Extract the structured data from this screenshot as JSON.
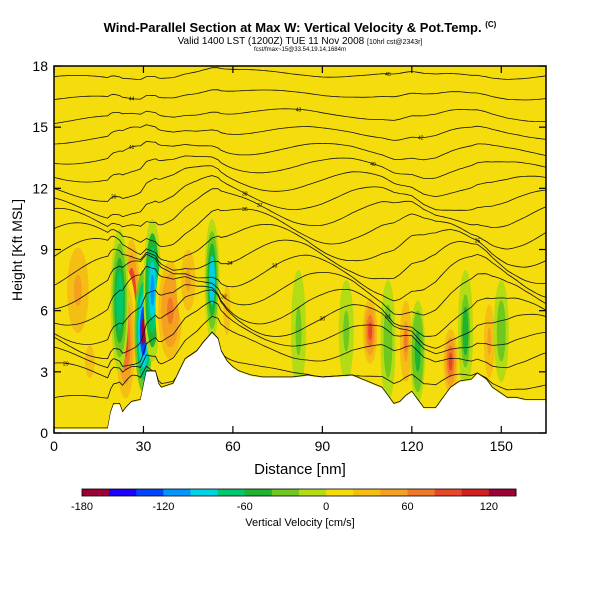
{
  "header": {
    "title": "Wind-Parallel Section at Max W: Vertical Velocity & Pot.Temp.",
    "title_mark": "(C)",
    "subtitle": "Valid 1400 LST (1200Z) TUE 11 Nov 2008",
    "subtitle_note": "[10hrl cst@2343r]",
    "tiny_note": "fcst/fmax~15@33.54,19.14,1684m"
  },
  "colors": {
    "plot_bg": "#f5dc0c",
    "terrain": "#ffffff",
    "contour": "#111111",
    "ramp": [
      "#9c0037",
      "#1a00ff",
      "#0046ff",
      "#0096ff",
      "#00d2e6",
      "#00c86e",
      "#1eb432",
      "#6ec81e",
      "#b4dc14",
      "#f5dc0c",
      "#f5be14",
      "#f5a01e",
      "#f07828",
      "#e84628",
      "#d21e1e",
      "#9c0037"
    ]
  },
  "chart_data": {
    "type": "contour",
    "xlabel": "Distance [nm]",
    "ylabel": "Height [Kft MSL]",
    "xlim": [
      0,
      165
    ],
    "ylim": [
      0,
      18
    ],
    "xticks": [
      0,
      30,
      60,
      90,
      120,
      150
    ],
    "yticks": [
      0,
      3,
      6,
      9,
      12,
      15,
      18
    ],
    "colorbar": {
      "label": "Vertical Velocity [cm/s]",
      "ticks": [
        -180,
        -120,
        -60,
        0,
        60,
        120
      ],
      "min": -180,
      "max": 140,
      "step": 20
    },
    "terrain_kft": [
      [
        0,
        0.2
      ],
      [
        18,
        0.2
      ],
      [
        19,
        1.0
      ],
      [
        20,
        1.4
      ],
      [
        22,
        1.4
      ],
      [
        23,
        1.0
      ],
      [
        24,
        1.2
      ],
      [
        26,
        1.5
      ],
      [
        29,
        1.6
      ],
      [
        31,
        3.0
      ],
      [
        34,
        3.0
      ],
      [
        35,
        2.4
      ],
      [
        36,
        2.2
      ],
      [
        40,
        2.4
      ],
      [
        42,
        3.0
      ],
      [
        44,
        3.6
      ],
      [
        46,
        3.8
      ],
      [
        48,
        4.0
      ],
      [
        50,
        4.4
      ],
      [
        53,
        4.9
      ],
      [
        55,
        4.6
      ],
      [
        56,
        4.0
      ],
      [
        58,
        3.5
      ],
      [
        60,
        3.2
      ],
      [
        62,
        3.0
      ],
      [
        66,
        2.8
      ],
      [
        70,
        2.7
      ],
      [
        80,
        2.7
      ],
      [
        85,
        2.8
      ],
      [
        90,
        2.7
      ],
      [
        100,
        2.8
      ],
      [
        105,
        2.5
      ],
      [
        110,
        2.2
      ],
      [
        112,
        1.8
      ],
      [
        114,
        1.4
      ],
      [
        116,
        1.5
      ],
      [
        118,
        1.8
      ],
      [
        120,
        2.0
      ],
      [
        122,
        1.6
      ],
      [
        124,
        1.2
      ],
      [
        128,
        1.2
      ],
      [
        130,
        1.6
      ],
      [
        133,
        2.2
      ],
      [
        136,
        2.5
      ],
      [
        140,
        2.6
      ],
      [
        142,
        2.9
      ],
      [
        145,
        2.6
      ],
      [
        147,
        2.2
      ],
      [
        149,
        2.0
      ],
      [
        152,
        1.7
      ],
      [
        155,
        1.7
      ],
      [
        158,
        1.6
      ],
      [
        165,
        1.6
      ]
    ],
    "w_cells": [
      {
        "x": 26,
        "z": 6.0,
        "rx": 3,
        "rz": 3.5,
        "w": 140
      },
      {
        "x": 24,
        "z": 4.5,
        "rx": 4,
        "rz": 3.5,
        "w": 80
      },
      {
        "x": 30,
        "z": 5.0,
        "rx": 3,
        "rz": 3.0,
        "w": -170
      },
      {
        "x": 33,
        "z": 7.0,
        "rx": 3,
        "rz": 3.5,
        "w": -110
      },
      {
        "x": 22,
        "z": 6.5,
        "rx": 3,
        "rz": 3.5,
        "w": -80
      },
      {
        "x": 8,
        "z": 7.0,
        "rx": 6,
        "rz": 3.5,
        "w": 40
      },
      {
        "x": 39,
        "z": 6.0,
        "rx": 5,
        "rz": 3.0,
        "w": 70
      },
      {
        "x": 45,
        "z": 7.5,
        "rx": 4,
        "rz": 2.5,
        "w": 40
      },
      {
        "x": 53,
        "z": 7.5,
        "rx": 2.5,
        "rz": 3.0,
        "w": -100
      },
      {
        "x": 58,
        "z": 6.0,
        "rx": 3,
        "rz": 3.0,
        "w": 30
      },
      {
        "x": 12,
        "z": 3.5,
        "rx": 4,
        "rz": 2.0,
        "w": 30
      },
      {
        "x": 106,
        "z": 5.0,
        "rx": 3,
        "rz": 2.0,
        "w": 80
      },
      {
        "x": 112,
        "z": 4.5,
        "rx": 2.5,
        "rz": 3.0,
        "w": -40
      },
      {
        "x": 118,
        "z": 4.5,
        "rx": 2.5,
        "rz": 2.5,
        "w": 60
      },
      {
        "x": 122,
        "z": 4.0,
        "rx": 2.5,
        "rz": 2.5,
        "w": -60
      },
      {
        "x": 133,
        "z": 3.5,
        "rx": 3,
        "rz": 2.0,
        "w": 80
      },
      {
        "x": 138,
        "z": 5.0,
        "rx": 2.5,
        "rz": 3.0,
        "w": -50
      },
      {
        "x": 146,
        "z": 4.5,
        "rx": 3,
        "rz": 3.0,
        "w": 40
      },
      {
        "x": 150,
        "z": 5.0,
        "rx": 2.5,
        "rz": 2.5,
        "w": -40
      },
      {
        "x": 98,
        "z": 5.0,
        "rx": 2.5,
        "rz": 2.5,
        "w": -30
      },
      {
        "x": 82,
        "z": 5.0,
        "rx": 2.5,
        "rz": 3.0,
        "w": -30
      },
      {
        "x": 60,
        "z": 15.0,
        "rx": 5,
        "rz": 2.0,
        "w": 15
      },
      {
        "x": 100,
        "z": 16.0,
        "rx": 6,
        "rz": 2.0,
        "w": 12
      }
    ],
    "isentropes": [
      {
        "z0": 0.6,
        "amp": 0.3,
        "label": "",
        "lx": 0
      },
      {
        "z0": 2.3,
        "amp": 0.5,
        "label": "",
        "lx": 0
      },
      {
        "z0": 3.5,
        "amp": 1.0,
        "label": "29",
        "lx": 4
      },
      {
        "z0": 4.3,
        "amp": 1.0,
        "label": "",
        "lx": 0
      },
      {
        "z0": 5.0,
        "amp": 1.3,
        "label": "30",
        "lx": 90
      },
      {
        "z0": 5.7,
        "amp": 1.4,
        "label": "31",
        "lx": 112
      },
      {
        "z0": 6.6,
        "amp": 1.4,
        "label": "32",
        "lx": 57
      },
      {
        "z0": 7.4,
        "amp": 1.5,
        "label": "33",
        "lx": 74
      },
      {
        "z0": 8.2,
        "amp": 1.5,
        "label": "34",
        "lx": 59
      },
      {
        "z0": 9.0,
        "amp": 1.5,
        "label": "35",
        "lx": 142
      },
      {
        "z0": 9.8,
        "amp": 1.4,
        "label": "36",
        "lx": 64
      },
      {
        "z0": 10.6,
        "amp": 1.2,
        "label": "37",
        "lx": 69
      },
      {
        "z0": 11.3,
        "amp": 1.0,
        "label": "38",
        "lx": 64
      },
      {
        "z0": 12.1,
        "amp": 0.8,
        "label": "39",
        "lx": 20
      },
      {
        "z0": 12.9,
        "amp": 0.6,
        "label": "40",
        "lx": 107
      },
      {
        "z0": 13.7,
        "amp": 0.5,
        "label": "41",
        "lx": 26
      },
      {
        "z0": 14.6,
        "amp": 0.4,
        "label": "42",
        "lx": 123
      },
      {
        "z0": 15.5,
        "amp": 0.4,
        "label": "43",
        "lx": 82
      },
      {
        "z0": 16.5,
        "amp": 0.3,
        "label": "44",
        "lx": 26
      },
      {
        "z0": 17.5,
        "amp": 0.3,
        "label": "45",
        "lx": 112
      }
    ]
  }
}
